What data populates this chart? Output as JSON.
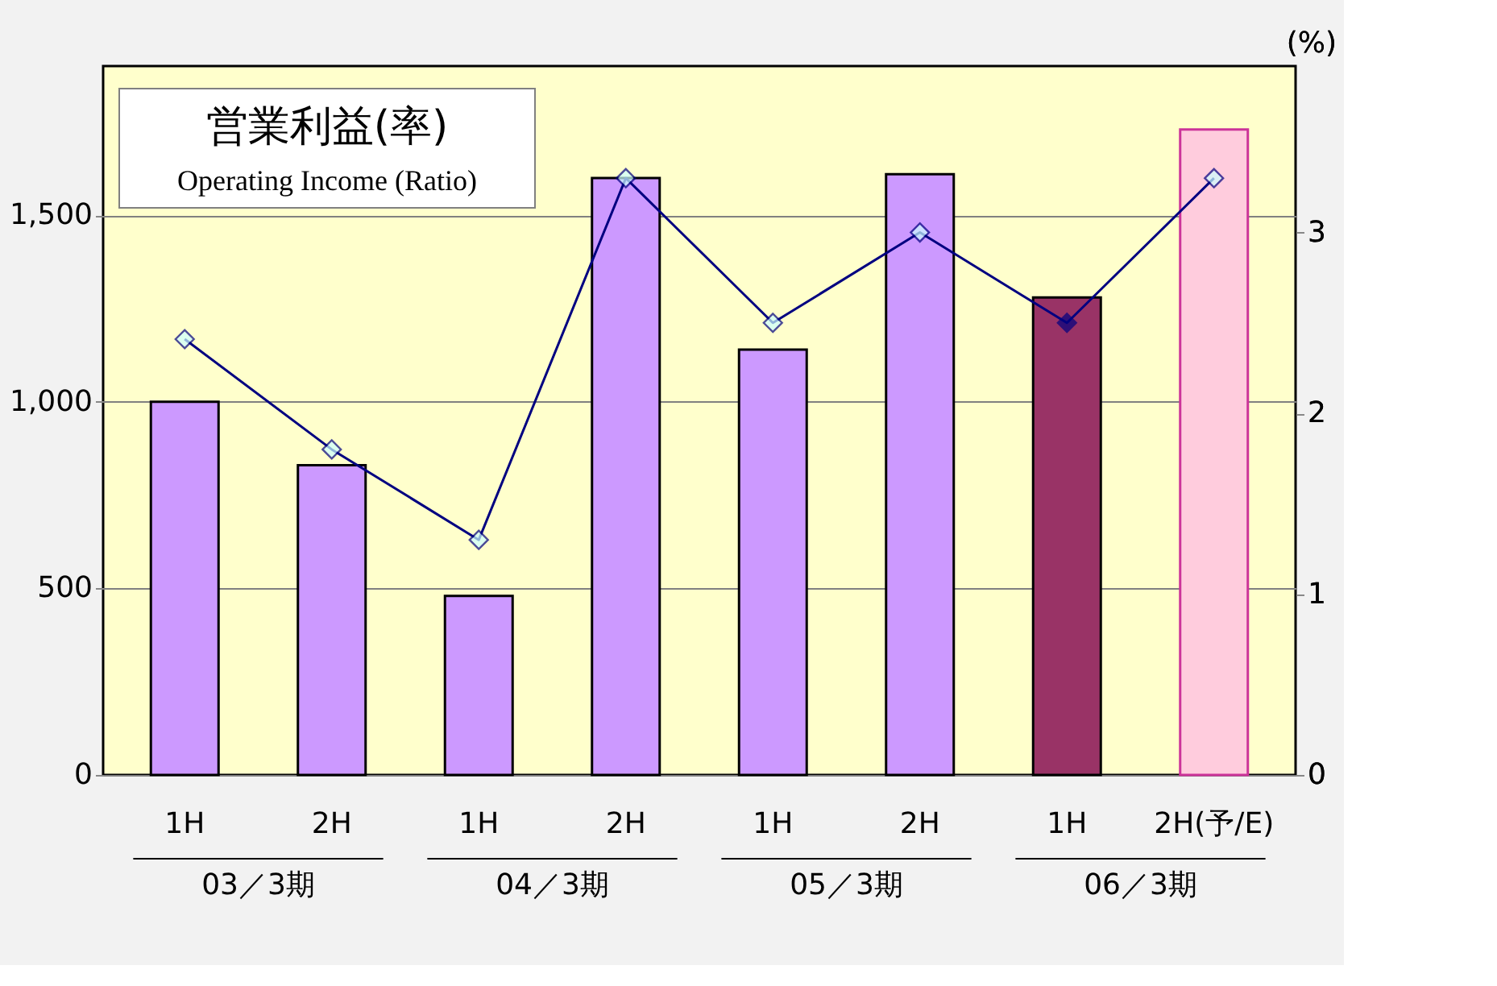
{
  "chart_data": {
    "type": "bar",
    "title": "営業利益(率)",
    "subtitle": "Operating Income (Ratio)",
    "y2label": "(%)",
    "categories": [
      "1H",
      "2H",
      "1H",
      "2H",
      "1H",
      "2H",
      "1H",
      "2H(予/E)"
    ],
    "series": [
      {
        "colors": [
          "#cc99ff",
          "#cc99ff",
          "#cc99ff",
          "#cc99ff",
          "#cc99ff",
          "#cc99ff",
          "#993366",
          "#ffccdd"
        ],
        "values": [
          1000,
          830,
          480,
          1600,
          1140,
          1610,
          1280,
          1730
        ]
      },
      {
        "type": "line",
        "axis": "y2",
        "color": "#000080",
        "colors": [
          "#ccffff",
          "#ccffff",
          "#ccffff",
          "#ccffff",
          "#ccffff",
          "#ccffff",
          "#000080",
          "#ccffff"
        ],
        "values": [
          2.41,
          1.8,
          1.3,
          3.3,
          2.5,
          3.0,
          2.5,
          3.3
        ]
      }
    ],
    "ylim": [
      0,
      1900
    ],
    "yticks": [
      0,
      500,
      {
        "value": 1000,
        "label": "1,000"
      },
      {
        "value": 1500,
        "label": "1,500"
      }
    ],
    "y2lim": [
      0,
      3.92
    ],
    "y2ticks": [
      0,
      1,
      2,
      3
    ],
    "annotations": [
      "03／3期",
      "04／3期",
      "05／3期",
      "06／3期"
    ],
    "grid": "y",
    "marker": "diamond",
    "line_style": "solid"
  }
}
